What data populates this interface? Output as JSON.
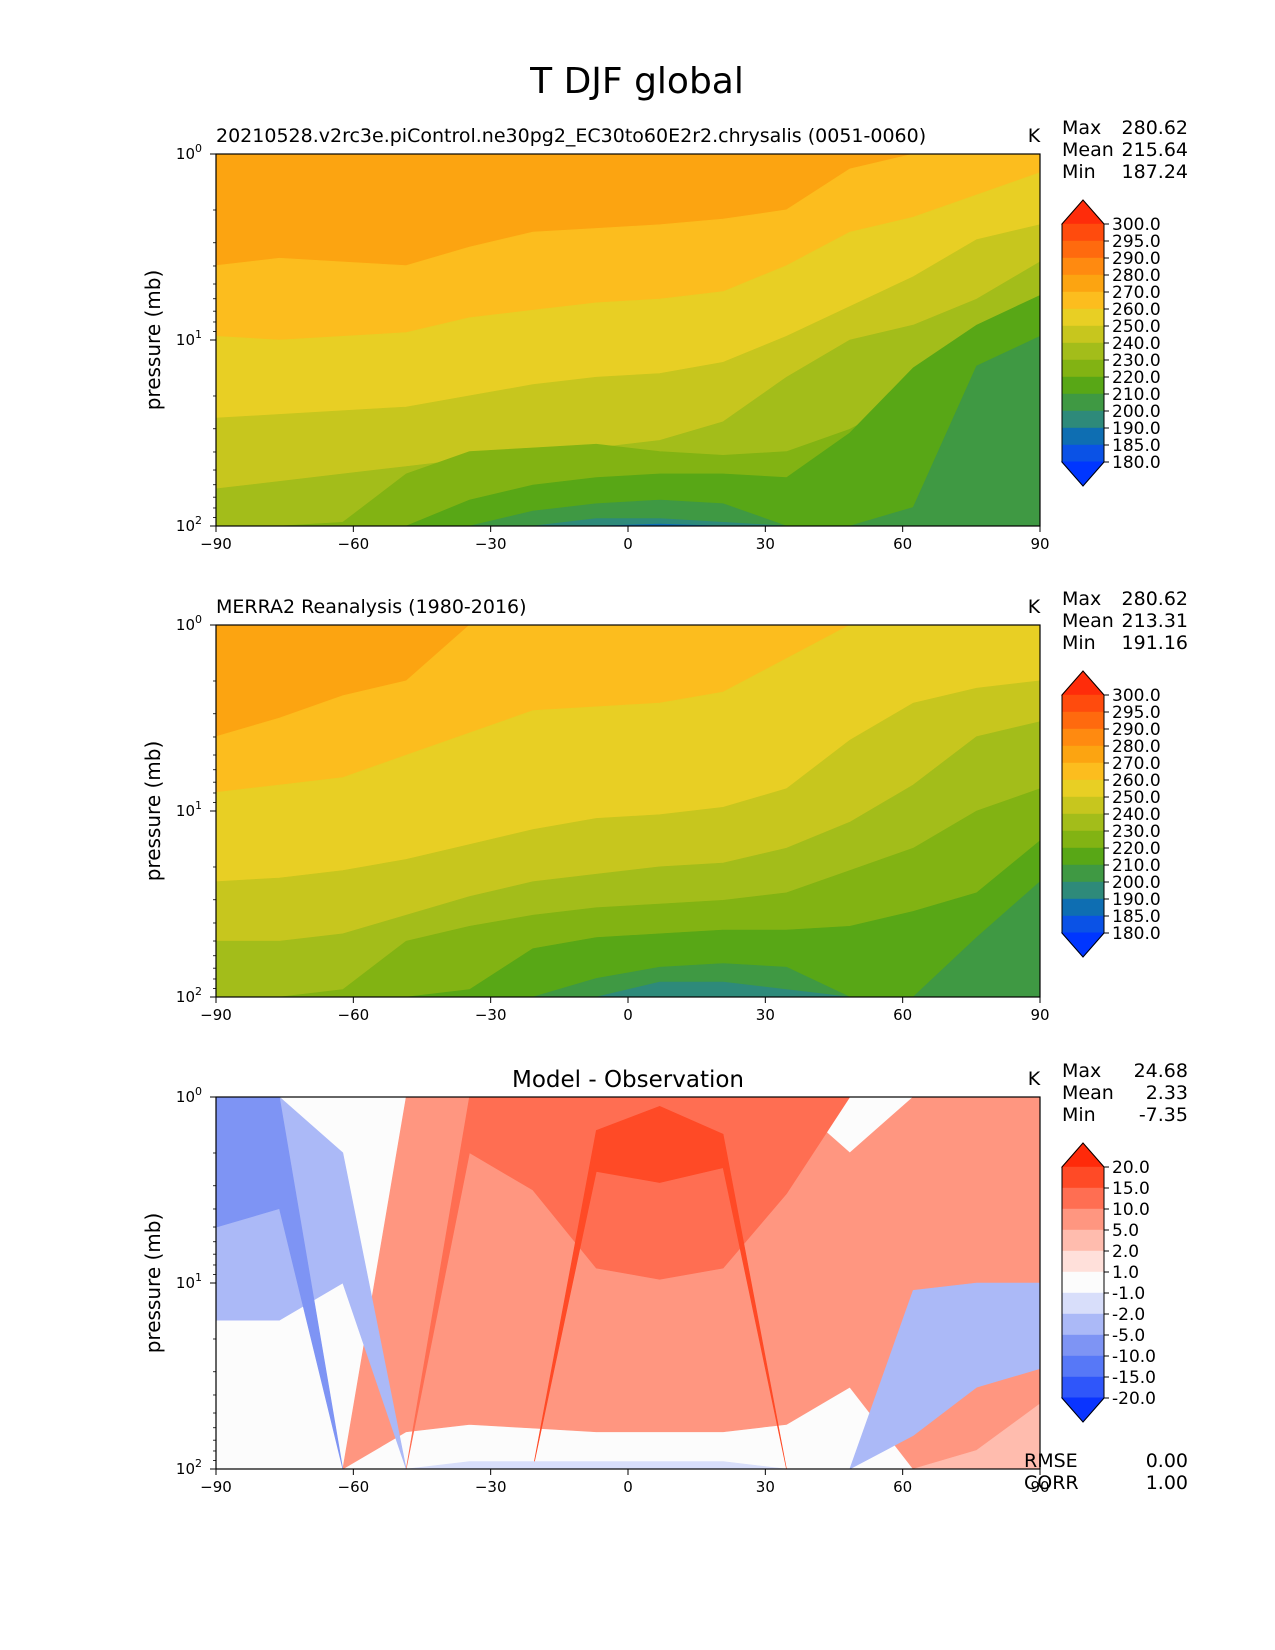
{
  "figure": {
    "title": "T DJF global"
  },
  "chart_data": [
    {
      "type": "contour",
      "title": "20210528.v2rc3e.piControl.ne30pg2_EC30to60E2r2.chrysalis (0051-0060)",
      "units": "K",
      "ylabel": "pressure (mb)",
      "xlim": [
        -90,
        90
      ],
      "x_ticks": [
        "−90",
        "−60",
        "−30",
        "0",
        "30",
        "60",
        "90"
      ],
      "y_ticks": [
        {
          "base": "10",
          "exp": "0"
        },
        {
          "base": "10",
          "exp": "1"
        },
        {
          "base": "10",
          "exp": "2"
        }
      ],
      "stats": {
        "max_label": "Max",
        "max": "280.62",
        "mean_label": "Mean",
        "mean": "215.64",
        "min_label": "Min",
        "min": "187.24"
      },
      "colorbar": {
        "levels": [
          "300.0",
          "295.0",
          "290.0",
          "280.0",
          "270.0",
          "260.0",
          "250.0",
          "240.0",
          "230.0",
          "220.0",
          "210.0",
          "200.0",
          "190.0",
          "185.0",
          "180.0"
        ],
        "colors": [
          "#ff2c0a",
          "#ff4b0d",
          "#ff6a0e",
          "#ff8a10",
          "#fca411",
          "#fcbd1e",
          "#e8cf24",
          "#c7c61e",
          "#a3bd1a",
          "#82b313",
          "#58a716",
          "#3f9943",
          "#2e8a7a",
          "#0e6eb2",
          "#0a52e6",
          "#0036ff"
        ]
      },
      "bands": [
        {
          "level": "280.0",
          "color": "#fca411",
          "top": [
            0.0,
            0.0,
            0.0,
            0.0,
            0.0,
            0.0,
            0.0,
            0.0,
            0.0,
            0.0,
            0.0,
            0.0,
            0.0,
            0.0
          ],
          "bottom": [
            0.6,
            0.56,
            0.58,
            0.6,
            0.5,
            0.42,
            0.4,
            0.38,
            0.35,
            0.3,
            0.08,
            0.0,
            0.0,
            0.0
          ]
        },
        {
          "level": "270.0",
          "color": "#fcbd1e",
          "top": [
            0.6,
            0.56,
            0.58,
            0.6,
            0.5,
            0.42,
            0.4,
            0.38,
            0.35,
            0.3,
            0.08,
            0.0,
            0.0,
            0.0
          ],
          "bottom": [
            0.98,
            1.0,
            0.98,
            0.96,
            0.88,
            0.84,
            0.8,
            0.78,
            0.74,
            0.6,
            0.42,
            0.34,
            0.22,
            0.1
          ]
        },
        {
          "level": "260.0",
          "color": "#e8cf24",
          "top": [
            0.98,
            1.0,
            0.98,
            0.96,
            0.88,
            0.84,
            0.8,
            0.78,
            0.74,
            0.6,
            0.42,
            0.34,
            0.22,
            0.1
          ],
          "bottom": [
            1.42,
            1.4,
            1.38,
            1.36,
            1.3,
            1.24,
            1.2,
            1.18,
            1.12,
            0.98,
            0.82,
            0.66,
            0.46,
            0.38
          ]
        },
        {
          "level": "250.0",
          "color": "#c7c61e",
          "top": [
            1.42,
            1.4,
            1.38,
            1.36,
            1.3,
            1.24,
            1.2,
            1.18,
            1.12,
            0.98,
            0.82,
            0.66,
            0.46,
            0.38
          ],
          "bottom": [
            1.8,
            1.76,
            1.72,
            1.68,
            1.64,
            1.6,
            1.58,
            1.54,
            1.44,
            1.2,
            1.0,
            0.92,
            0.78,
            0.58
          ]
        },
        {
          "level": "240.0",
          "color": "#a3bd1a",
          "top": [
            1.8,
            1.76,
            1.72,
            1.68,
            1.64,
            1.6,
            1.58,
            1.54,
            1.44,
            1.2,
            1.0,
            0.92,
            0.78,
            0.58
          ]
        },
        {
          "level": "230.0",
          "color": "#82b313",
          "top": [
            2.0,
            2.0,
            1.98,
            1.72,
            1.6,
            1.58,
            1.56,
            1.6,
            1.62,
            1.6,
            1.48,
            1.3,
            1.15,
            1.0
          ]
        },
        {
          "level": "220.0",
          "color": "#58a716",
          "top": [
            2.0,
            2.0,
            2.0,
            2.0,
            1.86,
            1.78,
            1.74,
            1.72,
            1.72,
            1.74,
            1.5,
            1.15,
            0.92,
            0.76
          ]
        },
        {
          "level": "210.0",
          "color": "#3f9943",
          "top": [
            2.0,
            2.0,
            2.0,
            2.0,
            2.0,
            1.92,
            1.88,
            1.86,
            1.88,
            2.0,
            2.0,
            1.9,
            1.14,
            0.98
          ],
          "bottom": [
            2.0,
            2.0,
            2.0,
            2.0,
            2.0,
            2.0,
            2.0,
            2.0,
            2.0,
            2.0,
            2.0,
            2.0,
            2.0,
            2.0
          ]
        },
        {
          "level": "200.0",
          "color": "#2e8a7a",
          "top": [
            2.0,
            2.0,
            2.0,
            2.0,
            2.0,
            2.0,
            1.96,
            1.96,
            1.98,
            2.0,
            2.0,
            2.0,
            2.0,
            2.0
          ]
        },
        {
          "level": "190.0",
          "color": "#0e6eb2",
          "top": [
            2.0,
            2.0,
            2.0,
            2.0,
            2.0,
            2.0,
            2.0,
            1.99,
            2.0,
            2.0,
            2.0,
            2.0,
            2.0,
            2.0
          ]
        }
      ]
    },
    {
      "type": "contour",
      "title": "MERRA2 Reanalysis (1980-2016)",
      "units": "K",
      "ylabel": "pressure (mb)",
      "xlim": [
        -90,
        90
      ],
      "x_ticks": [
        "−90",
        "−60",
        "−30",
        "0",
        "30",
        "60",
        "90"
      ],
      "y_ticks": [
        {
          "base": "10",
          "exp": "0"
        },
        {
          "base": "10",
          "exp": "1"
        },
        {
          "base": "10",
          "exp": "2"
        }
      ],
      "stats": {
        "max_label": "Max",
        "max": "280.62",
        "mean_label": "Mean",
        "mean": "213.31",
        "min_label": "Min",
        "min": "191.16"
      },
      "colorbar": {
        "levels": [
          "300.0",
          "295.0",
          "290.0",
          "280.0",
          "270.0",
          "260.0",
          "250.0",
          "240.0",
          "230.0",
          "220.0",
          "210.0",
          "200.0",
          "190.0",
          "185.0",
          "180.0"
        ],
        "colors": [
          "#ff2c0a",
          "#ff4b0d",
          "#ff6a0e",
          "#ff8a10",
          "#fca411",
          "#fcbd1e",
          "#e8cf24",
          "#c7c61e",
          "#a3bd1a",
          "#82b313",
          "#58a716",
          "#3f9943",
          "#2e8a7a",
          "#0e6eb2",
          "#0a52e6",
          "#0036ff"
        ]
      },
      "bands": [
        {
          "level": "270.0",
          "color": "#fca411",
          "top": [
            0.0,
            0.0,
            0.0,
            0.0,
            0.0,
            0.0,
            0.0,
            0.0,
            0.0,
            0.0,
            0.0,
            0.0,
            0.0,
            0.0
          ],
          "bottom": [
            0.6,
            0.5,
            0.38,
            0.3,
            0.0,
            0.0,
            0.0,
            0.0,
            0.0,
            0.0,
            0.0,
            0.0,
            0.0,
            0.0
          ]
        },
        {
          "level": "260.0",
          "color": "#fcbd1e",
          "top": [
            0.6,
            0.5,
            0.38,
            0.3,
            0.0,
            0.0,
            0.0,
            0.0,
            0.0,
            0.0,
            0.0,
            0.0,
            0.0,
            0.0
          ],
          "bottom": [
            0.9,
            0.86,
            0.82,
            0.7,
            0.58,
            0.46,
            0.44,
            0.42,
            0.36,
            0.18,
            0.0,
            0.0,
            0.0,
            0.0
          ]
        },
        {
          "level": "250.0",
          "color": "#e8cf24",
          "top": [
            0.9,
            0.86,
            0.82,
            0.7,
            0.58,
            0.46,
            0.44,
            0.42,
            0.36,
            0.18,
            0.0,
            0.0,
            0.0,
            0.0
          ],
          "bottom": [
            1.38,
            1.36,
            1.32,
            1.26,
            1.18,
            1.1,
            1.04,
            1.02,
            0.98,
            0.88,
            0.62,
            0.42,
            0.34,
            0.3
          ]
        },
        {
          "level": "240.0",
          "color": "#c7c61e",
          "top": [
            1.38,
            1.36,
            1.32,
            1.26,
            1.18,
            1.1,
            1.04,
            1.02,
            0.98,
            0.88,
            0.62,
            0.42,
            0.34,
            0.3
          ],
          "bottom": [
            1.7,
            1.7,
            1.66,
            1.56,
            1.46,
            1.38,
            1.34,
            1.3,
            1.28,
            1.2,
            1.06,
            0.86,
            0.6,
            0.52
          ]
        },
        {
          "level": "230.0",
          "color": "#a3bd1a",
          "top": [
            1.7,
            1.7,
            1.66,
            1.56,
            1.46,
            1.38,
            1.34,
            1.3,
            1.28,
            1.2,
            1.06,
            0.86,
            0.6,
            0.52
          ]
        },
        {
          "level": "220.0",
          "color": "#82b313",
          "top": [
            2.0,
            2.0,
            1.96,
            1.7,
            1.62,
            1.56,
            1.52,
            1.5,
            1.48,
            1.44,
            1.32,
            1.2,
            1.0,
            0.88
          ]
        },
        {
          "level": "210.0",
          "color": "#58a716",
          "top": [
            2.0,
            2.0,
            2.0,
            2.0,
            1.96,
            1.74,
            1.68,
            1.66,
            1.64,
            1.64,
            1.62,
            1.54,
            1.44,
            1.16
          ]
        },
        {
          "level": "200.0",
          "color": "#3f9943",
          "top": [
            2.0,
            2.0,
            2.0,
            2.0,
            2.0,
            2.0,
            1.9,
            1.84,
            1.82,
            1.84,
            2.0,
            2.0,
            1.68,
            1.38
          ],
          "bottom": [
            2.0,
            2.0,
            2.0,
            2.0,
            2.0,
            2.0,
            2.0,
            2.0,
            2.0,
            2.0,
            2.0,
            2.0,
            2.0,
            2.0
          ]
        },
        {
          "level": "190.0",
          "color": "#2e8a7a",
          "top": [
            2.0,
            2.0,
            2.0,
            2.0,
            2.0,
            2.0,
            2.0,
            1.92,
            1.92,
            1.96,
            2.0,
            2.0,
            2.0,
            2.0
          ]
        }
      ]
    },
    {
      "type": "contour",
      "title": "Model - Observation",
      "units": "K",
      "ylabel": "pressure (mb)",
      "xlim": [
        -90,
        90
      ],
      "x_ticks": [
        "−90",
        "−60",
        "−30",
        "0",
        "30",
        "60",
        "90"
      ],
      "y_ticks": [
        {
          "base": "10",
          "exp": "0"
        },
        {
          "base": "10",
          "exp": "1"
        },
        {
          "base": "10",
          "exp": "2"
        }
      ],
      "stats": {
        "max_label": "Max",
        "max": "24.68",
        "mean_label": "Mean",
        "mean": "2.33",
        "min_label": "Min",
        "min": "-7.35"
      },
      "metrics": {
        "rmse_label": "RMSE",
        "rmse": "0.00",
        "corr_label": "CORR",
        "corr": "1.00"
      },
      "colorbar": {
        "levels": [
          "20.0",
          "15.0",
          "10.0",
          "5.0",
          "2.0",
          "1.0",
          "-1.0",
          "-2.0",
          "-5.0",
          "-10.0",
          "-15.0",
          "-20.0"
        ],
        "colors": [
          "#ff2a0a",
          "#ff4a26",
          "#ff6e52",
          "#ff9680",
          "#ffbcae",
          "#ffe0da",
          "#fcfcfc",
          "#d8defa",
          "#abb9f7",
          "#7e94f4",
          "#5778f7",
          "#2f56fa",
          "#0a34ff"
        ]
      },
      "bands": [
        {
          "level": "5.0",
          "color": "#ff9680",
          "top": [
            2.0,
            2.0,
            2.0,
            0.0,
            0.0,
            0.0,
            0.0,
            0.0,
            0.0,
            0.0,
            0.3,
            0.0,
            0.0,
            0.0
          ],
          "bottom": [
            2.0,
            2.0,
            2.0,
            1.8,
            1.76,
            1.78,
            1.8,
            1.8,
            1.8,
            1.76,
            1.56,
            2.0,
            2.0,
            2.0
          ]
        },
        {
          "level": "10.0",
          "color": "#ff6e52",
          "top": [
            2.0,
            2.0,
            2.0,
            2.0,
            0.0,
            0.0,
            0.0,
            0.0,
            0.0,
            0.0,
            0.0,
            0.0,
            0.0,
            0.0
          ],
          "bottom": [
            2.0,
            2.0,
            2.0,
            2.0,
            0.3,
            0.5,
            0.92,
            0.98,
            0.92,
            0.52,
            0.0,
            0.0,
            0.0,
            0.0
          ]
        },
        {
          "level": "15.0",
          "color": "#ff4a26",
          "top": [
            2.0,
            2.0,
            2.0,
            2.0,
            2.0,
            2.0,
            0.18,
            0.05,
            0.2,
            2.0,
            2.0,
            2.0,
            2.0,
            2.0
          ],
          "bottom": [
            2.0,
            2.0,
            2.0,
            2.0,
            2.0,
            2.0,
            0.4,
            0.46,
            0.38,
            2.0,
            2.0,
            2.0,
            2.0,
            2.0
          ]
        },
        {
          "level": "-2.0",
          "color": "#abb9f7",
          "top": [
            0.0,
            0.0,
            0.3,
            2.0,
            2.0,
            2.0,
            2.0,
            2.0,
            2.0,
            2.0,
            2.0,
            1.04,
            1.0,
            1.0
          ],
          "bottom": [
            1.2,
            1.2,
            1.0,
            2.0,
            2.0,
            2.0,
            2.0,
            2.0,
            2.0,
            2.0,
            2.0,
            1.82,
            1.56,
            1.46
          ]
        },
        {
          "level": "-5.0",
          "color": "#7e94f4",
          "top": [
            0.0,
            0.0,
            2.0,
            2.0,
            2.0,
            2.0,
            2.0,
            2.0,
            2.0,
            2.0,
            2.0,
            2.0,
            2.0,
            2.0
          ],
          "bottom": [
            0.7,
            0.6,
            2.0,
            2.0,
            2.0,
            2.0,
            2.0,
            2.0,
            2.0,
            2.0,
            2.0,
            2.0,
            2.0,
            2.0
          ]
        },
        {
          "level": "-1.0",
          "color": "#d8defa",
          "top": [
            2.0,
            2.0,
            2.0,
            2.0,
            1.96,
            1.96,
            1.96,
            1.96,
            1.96,
            2.0,
            2.0,
            2.0,
            2.0,
            2.0
          ]
        },
        {
          "level": "2.0",
          "color": "#ffbcae",
          "top": [
            2.0,
            2.0,
            2.0,
            2.0,
            2.0,
            2.0,
            2.0,
            2.0,
            2.0,
            2.0,
            2.0,
            2.0,
            1.9,
            1.65
          ]
        }
      ]
    }
  ]
}
